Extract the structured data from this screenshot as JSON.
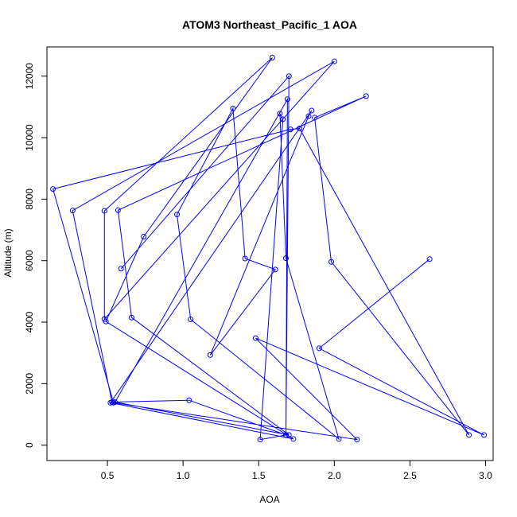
{
  "chart_data": {
    "type": "line",
    "title": "ATOM3 Northeast_Pacific_1 AOA",
    "xlabel": "AOA",
    "ylabel": "Altitude (m)",
    "xlim": [
      0.1,
      3.05
    ],
    "ylim": [
      -500,
      12950
    ],
    "x_ticks": [
      0.5,
      1.0,
      1.5,
      2.0,
      2.5,
      3.0
    ],
    "x_tick_labels": [
      "0.5",
      "1.0",
      "1.5",
      "2.0",
      "2.5",
      "3.0"
    ],
    "y_ticks": [
      0,
      2000,
      4000,
      6000,
      8000,
      10000,
      12000
    ],
    "y_tick_labels": [
      "0",
      "2000",
      "4000",
      "6000",
      "8000",
      "10000",
      "12000"
    ],
    "grid": false,
    "colors": {
      "series": "#0000ff",
      "axis": "#000000",
      "background": "#ffffff"
    },
    "series": [
      {
        "x": [
          2.63,
          1.9,
          2.99,
          1.48,
          2.15,
          0.54,
          0.14,
          1.71,
          1.77,
          2.89,
          1.98,
          1.87,
          2.21,
          0.57,
          0.66,
          1.7,
          0.55,
          1.69,
          1.68,
          1.51,
          1.66,
          1.64,
          1.68,
          2.03,
          1.05,
          0.96,
          1.33,
          1.41,
          1.61,
          1.18,
          1.83,
          1.85,
          0.52,
          1.73,
          0.49,
          0.74,
          1.59,
          0.48,
          0.48,
          2.0,
          0.27,
          0.53,
          1.04,
          1.68,
          1.7,
          0.59
        ],
        "y": [
          6050,
          3150,
          330,
          3480,
          180,
          1380,
          8330,
          10270,
          10300,
          330,
          5960,
          10650,
          11350,
          7640,
          4150,
          330,
          1400,
          11250,
          330,
          180,
          10600,
          10780,
          6080,
          200,
          4090,
          7500,
          10950,
          6070,
          5710,
          2930,
          10700,
          10880,
          1380,
          200,
          4020,
          6780,
          12600,
          7620,
          4100,
          12480,
          7630,
          1400,
          1460,
          330,
          12000,
          5740
        ]
      }
    ]
  }
}
